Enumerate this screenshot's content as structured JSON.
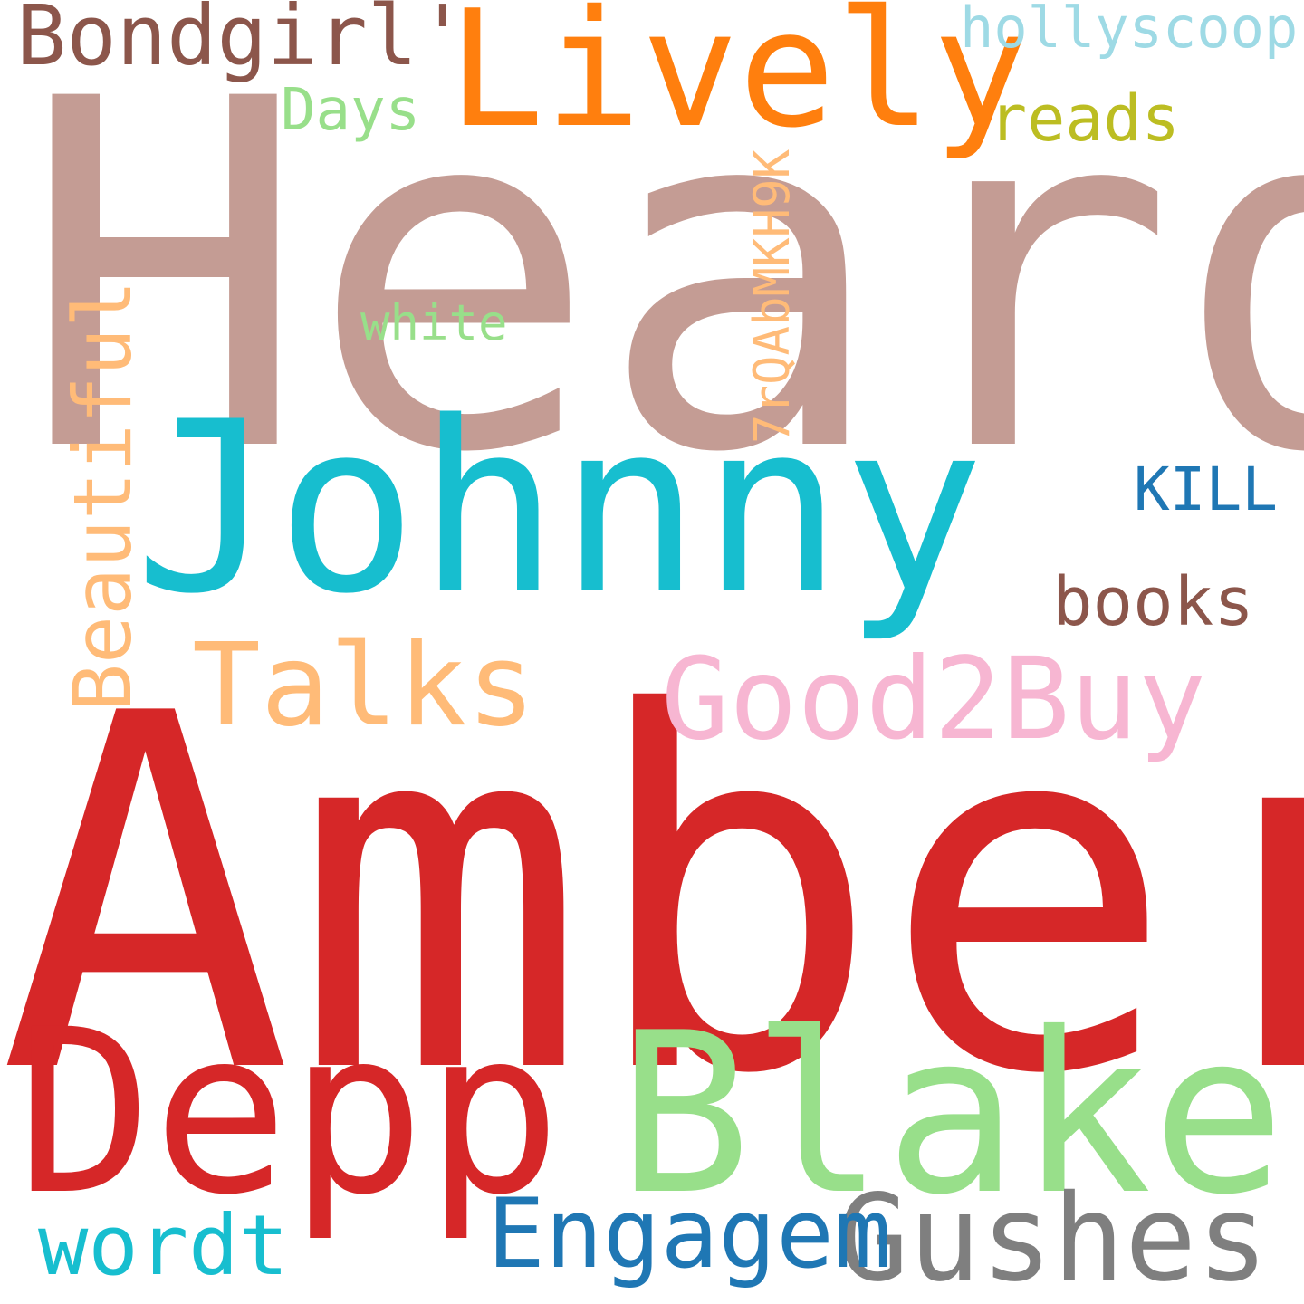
{
  "words": {
    "heard": {
      "text": "Heard",
      "color": "#c49c94"
    },
    "amber": {
      "text": "Amber",
      "color": "#d62728"
    },
    "johnny": {
      "text": "Johnny",
      "color": "#17becf"
    },
    "depp": {
      "text": "Depp",
      "color": "#d62728"
    },
    "blake": {
      "text": "Blake",
      "color": "#98df8a"
    },
    "lively": {
      "text": "Lively",
      "color": "#ff7f0e"
    },
    "bondgirl": {
      "text": "Bondgirl'",
      "color": "#8c564b"
    },
    "hollyscoop": {
      "text": "hollyscoop",
      "color": "#9edae5"
    },
    "reads": {
      "text": "reads",
      "color": "#bcbd22"
    },
    "days": {
      "text": "Days",
      "color": "#98df8a"
    },
    "white": {
      "text": "white",
      "color": "#98df8a"
    },
    "code": {
      "text": "7rQAbMKH9K",
      "color": "#ffbb78"
    },
    "beautiful": {
      "text": "Beautiful",
      "color": "#ffbb78"
    },
    "kill": {
      "text": "KILL",
      "color": "#1f77b4"
    },
    "books": {
      "text": "books",
      "color": "#8c564b"
    },
    "talks": {
      "text": "Talks",
      "color": "#ffbb78"
    },
    "good2buy": {
      "text": "Good2Buy",
      "color": "#f7b6d2"
    },
    "gushes": {
      "text": "Gushes",
      "color": "#7f7f7f"
    },
    "engagem": {
      "text": "Engagem",
      "color": "#1f77b4"
    },
    "wordt": {
      "text": "wordt",
      "color": "#17becf"
    }
  }
}
